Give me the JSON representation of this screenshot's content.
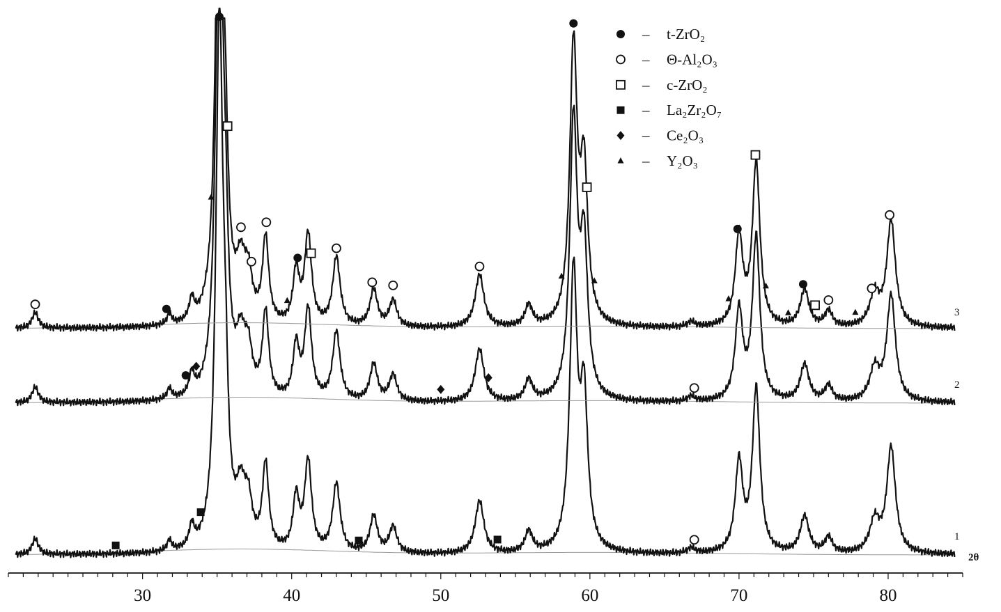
{
  "chart_data": {
    "type": "line",
    "xlabel": "2θ",
    "xlim": [
      21,
      85
    ],
    "x_ticks": [
      30,
      40,
      50,
      60,
      70,
      80
    ],
    "x_tick_labels": [
      "30",
      "40",
      "50",
      "60",
      "70",
      "80"
    ],
    "x_minor_step": 1,
    "grid": false,
    "legend_position": "top-right",
    "legend": [
      {
        "marker": "filled-circle",
        "dash": "–",
        "label": "t-ZrO₂"
      },
      {
        "marker": "open-circle",
        "dash": "–",
        "label": "Θ-Al₂O₃"
      },
      {
        "marker": "open-square",
        "dash": "–",
        "label": "c-ZrO₂"
      },
      {
        "marker": "filled-square",
        "dash": "–",
        "label": "La₂Zr₂O₇"
      },
      {
        "marker": "filled-diamond",
        "dash": "–",
        "label": "Ce₂O₃"
      },
      {
        "marker": "filled-triangle",
        "dash": "–",
        "label": "Y₂O₃"
      }
    ],
    "peak_profile": [
      {
        "x": 22.8,
        "h": 0.03,
        "w": 0.25
      },
      {
        "x": 31.8,
        "h": 0.02,
        "w": 0.2
      },
      {
        "x": 33.3,
        "h": 0.04,
        "w": 0.2
      },
      {
        "x": 35.15,
        "h": 1.0,
        "w": 0.28
      },
      {
        "x": 35.55,
        "h": 0.2,
        "w": 0.22
      },
      {
        "x": 36.6,
        "h": 0.1,
        "w": 0.4
      },
      {
        "x": 37.1,
        "h": 0.07,
        "w": 0.3
      },
      {
        "x": 38.25,
        "h": 0.16,
        "w": 0.25
      },
      {
        "x": 40.3,
        "h": 0.1,
        "w": 0.25
      },
      {
        "x": 41.1,
        "h": 0.17,
        "w": 0.28
      },
      {
        "x": 43.0,
        "h": 0.13,
        "w": 0.3
      },
      {
        "x": 45.5,
        "h": 0.07,
        "w": 0.3
      },
      {
        "x": 46.8,
        "h": 0.05,
        "w": 0.3
      },
      {
        "x": 52.6,
        "h": 0.1,
        "w": 0.35
      },
      {
        "x": 55.9,
        "h": 0.04,
        "w": 0.3
      },
      {
        "x": 58.9,
        "h": 0.52,
        "w": 0.3
      },
      {
        "x": 59.6,
        "h": 0.28,
        "w": 0.3
      },
      {
        "x": 66.8,
        "h": 0.01,
        "w": 0.3
      },
      {
        "x": 70.0,
        "h": 0.17,
        "w": 0.3
      },
      {
        "x": 71.15,
        "h": 0.31,
        "w": 0.3
      },
      {
        "x": 74.4,
        "h": 0.07,
        "w": 0.35
      },
      {
        "x": 76.0,
        "h": 0.03,
        "w": 0.3
      },
      {
        "x": 79.1,
        "h": 0.06,
        "w": 0.4
      },
      {
        "x": 80.2,
        "h": 0.2,
        "w": 0.35
      }
    ],
    "series": [
      {
        "name": "1",
        "intensity_scale": 1.0,
        "markers": [
          {
            "x": 28.2,
            "marker": "filled-square"
          },
          {
            "x": 33.9,
            "marker": "filled-square"
          },
          {
            "x": 44.5,
            "marker": "filled-square"
          },
          {
            "x": 53.8,
            "marker": "filled-square"
          },
          {
            "x": 67.0,
            "marker": "open-circle"
          }
        ]
      },
      {
        "name": "2",
        "intensity_scale": 1.0,
        "markers": [
          {
            "x": 32.9,
            "marker": "filled-circle"
          },
          {
            "x": 33.6,
            "marker": "filled-diamond"
          },
          {
            "x": 50.0,
            "marker": "filled-diamond"
          },
          {
            "x": 53.2,
            "marker": "filled-diamond"
          },
          {
            "x": 67.0,
            "marker": "open-circle"
          }
        ]
      },
      {
        "name": "3",
        "intensity_scale": 1.0,
        "markers": [
          {
            "x": 22.8,
            "marker": "open-circle"
          },
          {
            "x": 31.6,
            "marker": "filled-circle"
          },
          {
            "x": 34.6,
            "marker": "filled-triangle"
          },
          {
            "x": 35.15,
            "marker": "filled-circle"
          },
          {
            "x": 35.7,
            "marker": "open-square"
          },
          {
            "x": 36.6,
            "marker": "open-circle"
          },
          {
            "x": 37.3,
            "marker": "open-circle"
          },
          {
            "x": 38.3,
            "marker": "open-circle"
          },
          {
            "x": 39.7,
            "marker": "filled-triangle"
          },
          {
            "x": 40.4,
            "marker": "filled-circle"
          },
          {
            "x": 41.3,
            "marker": "open-square"
          },
          {
            "x": 43.0,
            "marker": "open-circle"
          },
          {
            "x": 45.4,
            "marker": "open-circle"
          },
          {
            "x": 46.8,
            "marker": "open-circle"
          },
          {
            "x": 52.6,
            "marker": "open-circle"
          },
          {
            "x": 58.1,
            "marker": "filled-triangle"
          },
          {
            "x": 58.9,
            "marker": "filled-circle"
          },
          {
            "x": 59.8,
            "marker": "open-square"
          },
          {
            "x": 60.3,
            "marker": "filled-triangle"
          },
          {
            "x": 69.3,
            "marker": "filled-triangle"
          },
          {
            "x": 69.9,
            "marker": "filled-circle"
          },
          {
            "x": 71.1,
            "marker": "open-square"
          },
          {
            "x": 71.8,
            "marker": "filled-triangle"
          },
          {
            "x": 73.3,
            "marker": "filled-triangle"
          },
          {
            "x": 74.3,
            "marker": "filled-circle"
          },
          {
            "x": 75.1,
            "marker": "open-square"
          },
          {
            "x": 76.0,
            "marker": "open-circle"
          },
          {
            "x": 77.8,
            "marker": "filled-triangle"
          },
          {
            "x": 78.9,
            "marker": "open-circle"
          },
          {
            "x": 80.1,
            "marker": "open-circle"
          }
        ]
      }
    ]
  }
}
